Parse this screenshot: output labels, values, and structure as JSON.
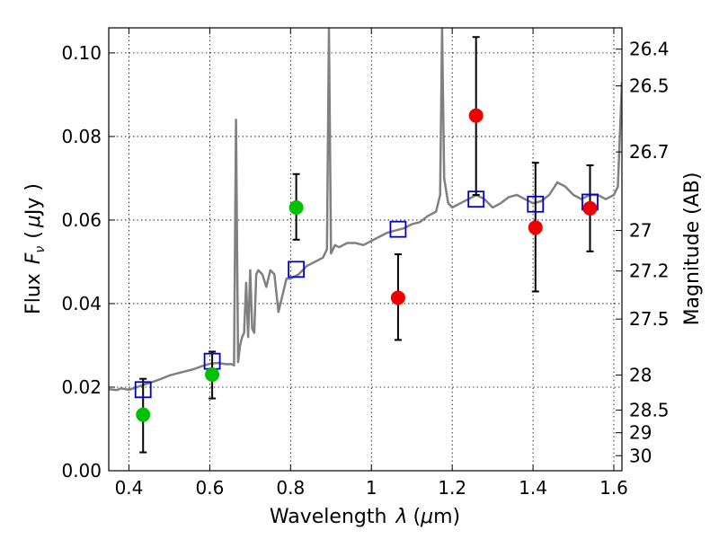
{
  "chart_data": {
    "type": "scatter",
    "xlabel": {
      "main": "Wavelength",
      "symbol": "λ",
      "unit_open": "(",
      "unit_mu": "μ",
      "unit_rest": "m)"
    },
    "ylabel": {
      "main": "Flux",
      "symbol": "F",
      "sub": "ν",
      "unit_open": "(",
      "unit_mu": "μ",
      "unit_rest": "Jy )"
    },
    "y2label": "Magnitude (AB)",
    "xlim": [
      0.35,
      1.62
    ],
    "ylim": [
      0.0,
      0.106
    ],
    "grid": true,
    "xticks": [
      {
        "value": 0.4,
        "label": "0.4"
      },
      {
        "value": 0.6,
        "label": "0.6"
      },
      {
        "value": 0.8,
        "label": "0.8"
      },
      {
        "value": 1.0,
        "label": "1"
      },
      {
        "value": 1.2,
        "label": "1.2"
      },
      {
        "value": 1.4,
        "label": "1.4"
      },
      {
        "value": 1.6,
        "label": "1.6"
      }
    ],
    "yticks": [
      {
        "value": 0.0,
        "label": "0.00"
      },
      {
        "value": 0.02,
        "label": "0.02"
      },
      {
        "value": 0.04,
        "label": "0.04"
      },
      {
        "value": 0.06,
        "label": "0.06"
      },
      {
        "value": 0.08,
        "label": "0.08"
      },
      {
        "value": 0.1,
        "label": "0.10"
      }
    ],
    "y2ticks": [
      {
        "flux": 0.1009,
        "label": "26.4"
      },
      {
        "flux": 0.0921,
        "label": "26.5"
      },
      {
        "flux": 0.0763,
        "label": "26.7"
      },
      {
        "flux": 0.0575,
        "label": "27"
      },
      {
        "flux": 0.0478,
        "label": "27.2"
      },
      {
        "flux": 0.0363,
        "label": "27.5"
      },
      {
        "flux": 0.0229,
        "label": "28"
      },
      {
        "flux": 0.0145,
        "label": "28.5"
      },
      {
        "flux": 0.0091,
        "label": "29"
      },
      {
        "flux": 0.0036,
        "label": "30"
      }
    ],
    "colors": {
      "spectrum": "#808080",
      "model": "#0000cc",
      "green": "#00c000",
      "red": "#ee0000",
      "errorbar": "#000000"
    },
    "spectrum": [
      [
        0.35,
        0.0195
      ],
      [
        0.37,
        0.0193
      ],
      [
        0.38,
        0.0197
      ],
      [
        0.4,
        0.0194
      ],
      [
        0.42,
        0.02
      ],
      [
        0.44,
        0.0207
      ],
      [
        0.46,
        0.0213
      ],
      [
        0.48,
        0.022
      ],
      [
        0.5,
        0.0228
      ],
      [
        0.52,
        0.0233
      ],
      [
        0.54,
        0.0238
      ],
      [
        0.56,
        0.0243
      ],
      [
        0.58,
        0.025
      ],
      [
        0.6,
        0.0256
      ],
      [
        0.62,
        0.0258
      ],
      [
        0.64,
        0.0255
      ],
      [
        0.655,
        0.0255
      ],
      [
        0.66,
        0.0252
      ],
      [
        0.665,
        0.084
      ],
      [
        0.67,
        0.026
      ],
      [
        0.675,
        0.03
      ],
      [
        0.68,
        0.032
      ],
      [
        0.685,
        0.033
      ],
      [
        0.69,
        0.045
      ],
      [
        0.695,
        0.032
      ],
      [
        0.7,
        0.048
      ],
      [
        0.705,
        0.034
      ],
      [
        0.71,
        0.033
      ],
      [
        0.715,
        0.047
      ],
      [
        0.72,
        0.048
      ],
      [
        0.73,
        0.047
      ],
      [
        0.74,
        0.044
      ],
      [
        0.75,
        0.048
      ],
      [
        0.76,
        0.047
      ],
      [
        0.77,
        0.038
      ],
      [
        0.78,
        0.042
      ],
      [
        0.79,
        0.046
      ],
      [
        0.8,
        0.046
      ],
      [
        0.82,
        0.047
      ],
      [
        0.84,
        0.049
      ],
      [
        0.86,
        0.05
      ],
      [
        0.88,
        0.051
      ],
      [
        0.89,
        0.053
      ],
      [
        0.895,
        0.106
      ],
      [
        0.9,
        0.052
      ],
      [
        0.91,
        0.054
      ],
      [
        0.92,
        0.0535
      ],
      [
        0.94,
        0.0545
      ],
      [
        0.96,
        0.0545
      ],
      [
        0.98,
        0.054
      ],
      [
        1.0,
        0.055
      ],
      [
        1.02,
        0.056
      ],
      [
        1.04,
        0.057
      ],
      [
        1.06,
        0.0575
      ],
      [
        1.08,
        0.058
      ],
      [
        1.1,
        0.059
      ],
      [
        1.12,
        0.0595
      ],
      [
        1.14,
        0.061
      ],
      [
        1.16,
        0.062
      ],
      [
        1.17,
        0.066
      ],
      [
        1.175,
        0.106
      ],
      [
        1.18,
        0.07
      ],
      [
        1.19,
        0.064
      ],
      [
        1.2,
        0.063
      ],
      [
        1.22,
        0.064
      ],
      [
        1.24,
        0.065
      ],
      [
        1.26,
        0.066
      ],
      [
        1.28,
        0.065
      ],
      [
        1.3,
        0.063
      ],
      [
        1.32,
        0.064
      ],
      [
        1.34,
        0.0655
      ],
      [
        1.36,
        0.066
      ],
      [
        1.38,
        0.065
      ],
      [
        1.4,
        0.064
      ],
      [
        1.42,
        0.0645
      ],
      [
        1.44,
        0.066
      ],
      [
        1.46,
        0.069
      ],
      [
        1.48,
        0.068
      ],
      [
        1.5,
        0.066
      ],
      [
        1.52,
        0.065
      ],
      [
        1.54,
        0.066
      ],
      [
        1.56,
        0.066
      ],
      [
        1.58,
        0.065
      ],
      [
        1.6,
        0.066
      ],
      [
        1.61,
        0.068
      ],
      [
        1.62,
        0.093
      ]
    ],
    "model_points": [
      {
        "x": 0.435,
        "y": 0.0194
      },
      {
        "x": 0.606,
        "y": 0.0262
      },
      {
        "x": 0.814,
        "y": 0.0482
      },
      {
        "x": 1.066,
        "y": 0.0578
      },
      {
        "x": 1.259,
        "y": 0.065
      },
      {
        "x": 1.406,
        "y": 0.0638
      },
      {
        "x": 1.541,
        "y": 0.0643
      }
    ],
    "observed_points": [
      {
        "x": 0.435,
        "y": 0.0134,
        "yerr_low": 0.0044,
        "yerr_high": 0.022,
        "color": "green"
      },
      {
        "x": 0.606,
        "y": 0.023,
        "yerr_low": 0.0173,
        "yerr_high": 0.0285,
        "color": "green"
      },
      {
        "x": 0.814,
        "y": 0.063,
        "yerr_low": 0.0553,
        "yerr_high": 0.071,
        "color": "green"
      },
      {
        "x": 1.066,
        "y": 0.0414,
        "yerr_low": 0.0313,
        "yerr_high": 0.0518,
        "color": "red"
      },
      {
        "x": 1.259,
        "y": 0.085,
        "yerr_low": 0.066,
        "yerr_high": 0.1038,
        "color": "red"
      },
      {
        "x": 1.406,
        "y": 0.0582,
        "yerr_low": 0.0429,
        "yerr_high": 0.0737,
        "color": "red"
      },
      {
        "x": 1.541,
        "y": 0.0628,
        "yerr_low": 0.0525,
        "yerr_high": 0.0731,
        "color": "red"
      }
    ]
  }
}
